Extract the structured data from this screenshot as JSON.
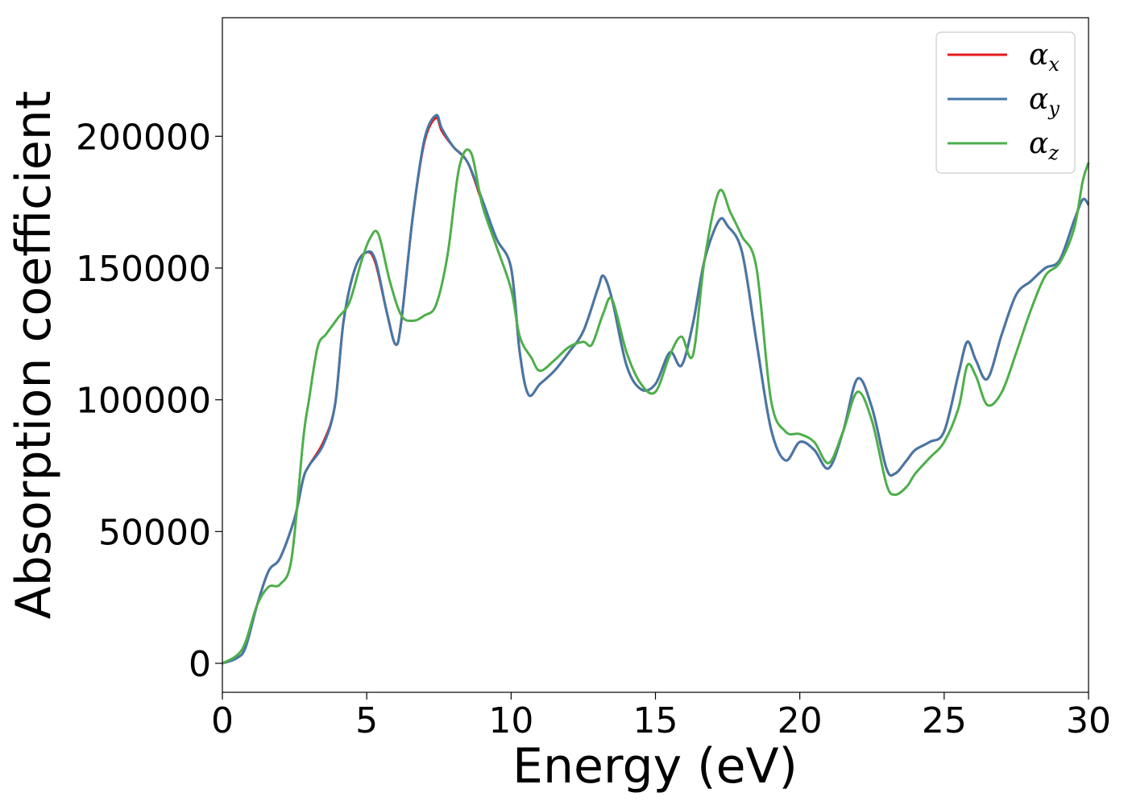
{
  "chart_data": {
    "type": "line",
    "title": "",
    "xlabel": "Energy (eV)",
    "ylabel": "Absorption coefficient",
    "xlim": [
      0,
      30
    ],
    "ylim": [
      -11000,
      245000
    ],
    "xticks": [
      0,
      5,
      10,
      15,
      20,
      25,
      30
    ],
    "yticks": [
      0,
      50000,
      100000,
      150000,
      200000
    ],
    "xtick_labels": [
      "0",
      "5",
      "10",
      "15",
      "20",
      "25",
      "30"
    ],
    "ytick_labels": [
      "0",
      "50000",
      "100000",
      "150000",
      "200000"
    ],
    "grid": false,
    "legend_position": "top-right",
    "series": [
      {
        "name": "α",
        "subscript": "x",
        "color": "#e41a1c",
        "x": [
          0,
          0.5,
          0.8,
          1.2,
          1.6,
          2.0,
          2.5,
          2.8,
          3.0,
          3.5,
          3.9,
          4.2,
          4.6,
          5.0,
          5.3,
          5.7,
          6.0,
          6.2,
          6.6,
          7.0,
          7.4,
          7.6,
          8.0,
          8.5,
          9.0,
          9.5,
          10.0,
          10.3,
          10.6,
          11.0,
          11.5,
          12.0,
          12.5,
          13.0,
          13.2,
          13.5,
          14.0,
          14.5,
          15.0,
          15.5,
          15.9,
          16.3,
          16.7,
          17.2,
          17.5,
          18.0,
          18.5,
          19.0,
          19.5,
          20.0,
          20.5,
          21.0,
          21.5,
          22.0,
          22.5,
          23.0,
          23.3,
          23.7,
          24.0,
          24.5,
          25.0,
          25.5,
          25.8,
          26.1,
          26.5,
          27.0,
          27.5,
          28.0,
          28.5,
          29.0,
          29.5,
          29.8,
          30.0
        ],
        "values": [
          0,
          2000,
          6000,
          22000,
          35000,
          40000,
          55000,
          70000,
          75000,
          84000,
          98000,
          130000,
          150000,
          156000,
          152000,
          133000,
          121000,
          130000,
          170000,
          198000,
          207000,
          202000,
          196000,
          190000,
          175000,
          161000,
          150000,
          118000,
          102000,
          106000,
          111000,
          118000,
          126000,
          142000,
          147000,
          138000,
          113000,
          104000,
          106000,
          118000,
          113000,
          129000,
          153000,
          168000,
          166000,
          156000,
          122000,
          89000,
          77000,
          84000,
          81000,
          74000,
          88000,
          108000,
          97000,
          74000,
          72000,
          77000,
          81000,
          84000,
          88000,
          110000,
          122000,
          115000,
          108000,
          125000,
          140000,
          145000,
          150000,
          153000,
          168000,
          176000,
          174000
        ]
      },
      {
        "name": "α",
        "subscript": "y",
        "color": "#4478a8",
        "x": [
          0,
          0.5,
          0.8,
          1.2,
          1.6,
          2.0,
          2.5,
          2.8,
          3.0,
          3.5,
          3.9,
          4.2,
          4.6,
          5.0,
          5.3,
          5.7,
          6.0,
          6.2,
          6.6,
          7.0,
          7.4,
          7.6,
          8.0,
          8.5,
          9.0,
          9.5,
          10.0,
          10.3,
          10.6,
          11.0,
          11.5,
          12.0,
          12.5,
          13.0,
          13.2,
          13.5,
          14.0,
          14.5,
          15.0,
          15.5,
          15.9,
          16.3,
          16.7,
          17.2,
          17.5,
          18.0,
          18.5,
          19.0,
          19.5,
          20.0,
          20.5,
          21.0,
          21.5,
          22.0,
          22.5,
          23.0,
          23.3,
          23.7,
          24.0,
          24.5,
          25.0,
          25.5,
          25.8,
          26.1,
          26.5,
          27.0,
          27.5,
          28.0,
          28.5,
          29.0,
          29.5,
          29.8,
          30.0
        ],
        "values": [
          0,
          2000,
          6000,
          22000,
          35000,
          40000,
          55000,
          70000,
          75000,
          83000,
          98000,
          130000,
          150000,
          156000,
          153000,
          133000,
          121000,
          130000,
          170000,
          199000,
          208000,
          203000,
          196000,
          190000,
          176000,
          161000,
          150000,
          118000,
          102000,
          106000,
          111000,
          118000,
          126000,
          142000,
          147000,
          138000,
          113000,
          104000,
          106000,
          118000,
          113000,
          129000,
          153000,
          168000,
          166000,
          156000,
          122000,
          89000,
          77000,
          84000,
          81000,
          74000,
          88000,
          108000,
          97000,
          74000,
          72000,
          77000,
          81000,
          84000,
          88000,
          110000,
          122000,
          115000,
          108000,
          125000,
          140000,
          145000,
          150000,
          153000,
          168000,
          176000,
          174000
        ]
      },
      {
        "name": "α",
        "subscript": "z",
        "color": "#4daf4a",
        "x": [
          0,
          0.5,
          0.8,
          1.2,
          1.6,
          2.0,
          2.4,
          2.8,
          3.0,
          3.3,
          3.6,
          4.0,
          4.4,
          4.8,
          5.1,
          5.4,
          5.8,
          6.2,
          6.6,
          7.0,
          7.4,
          7.8,
          8.2,
          8.6,
          9.0,
          9.5,
          10.0,
          10.3,
          10.7,
          11.0,
          11.5,
          12.0,
          12.5,
          12.8,
          13.2,
          13.5,
          14.0,
          14.5,
          15.0,
          15.5,
          15.9,
          16.3,
          16.7,
          17.2,
          17.6,
          18.0,
          18.5,
          19.0,
          19.5,
          20.0,
          20.5,
          21.0,
          21.5,
          22.0,
          22.5,
          23.0,
          23.3,
          23.7,
          24.0,
          24.5,
          25.0,
          25.5,
          25.8,
          26.1,
          26.5,
          27.0,
          27.5,
          28.0,
          28.5,
          29.0,
          29.5,
          29.8,
          30.0
        ],
        "values": [
          0,
          3000,
          8000,
          22000,
          29000,
          30000,
          40000,
          85000,
          100000,
          120000,
          125000,
          131000,
          137000,
          152000,
          161000,
          163000,
          145000,
          132000,
          130000,
          132000,
          136000,
          155000,
          188000,
          194000,
          174000,
          158000,
          142000,
          124000,
          116000,
          111000,
          115000,
          120000,
          122000,
          121000,
          133000,
          138000,
          118000,
          106000,
          103000,
          117000,
          124000,
          117000,
          153000,
          179000,
          171000,
          162000,
          150000,
          100000,
          88000,
          87000,
          84000,
          76000,
          88000,
          103000,
          92000,
          68000,
          64000,
          67000,
          72000,
          78000,
          84000,
          97000,
          113000,
          109000,
          98000,
          103000,
          118000,
          134000,
          147000,
          152000,
          165000,
          183000,
          190000
        ]
      }
    ]
  }
}
